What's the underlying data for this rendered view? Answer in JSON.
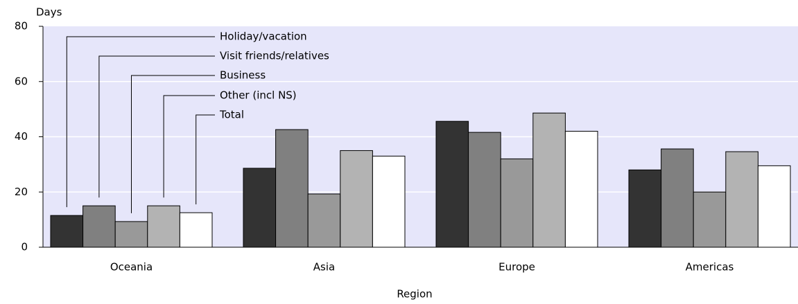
{
  "chart_data": {
    "type": "bar",
    "y_label": "Days",
    "x_label": "Region",
    "categories": [
      "Oceania",
      "Asia",
      "Europe",
      "Americas"
    ],
    "series": [
      {
        "name": "Holiday/vacation",
        "color": "#333333",
        "values": [
          11.5,
          28.6,
          45.6,
          28
        ]
      },
      {
        "name": "Visit friends/relatives",
        "color": "#808080",
        "values": [
          15,
          42.6,
          41.6,
          35.6
        ]
      },
      {
        "name": "Business",
        "color": "#999999",
        "values": [
          9.3,
          19.3,
          32,
          20
        ]
      },
      {
        "name": "Other (incl NS)",
        "color": "#b3b3b3",
        "values": [
          15,
          35,
          48.6,
          34.6
        ]
      },
      {
        "name": "Total",
        "color": "#ffffff",
        "values": [
          12.5,
          33,
          42,
          29.5
        ]
      }
    ],
    "ylim": [
      0,
      80
    ],
    "yticks": [
      0,
      20,
      40,
      60,
      80
    ],
    "grid": true,
    "plot_background": "#e6e6fa"
  }
}
